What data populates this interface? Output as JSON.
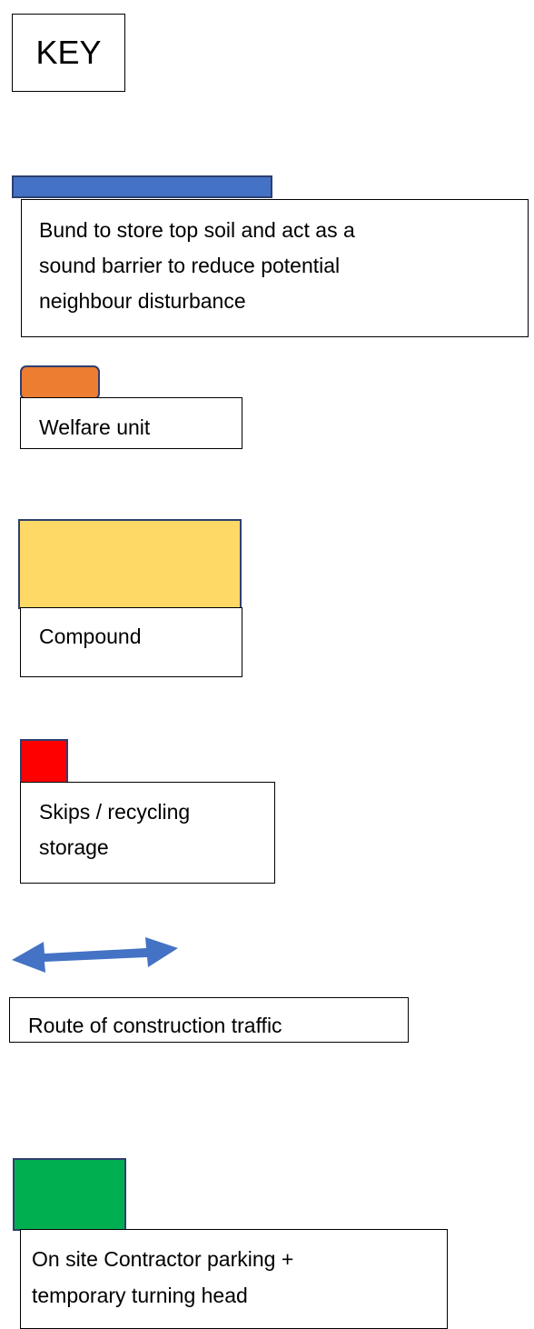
{
  "title": "KEY",
  "items": [
    {
      "color": "#4472c4",
      "lines": [
        "Bund to store top soil and act as a",
        "sound barrier to reduce potential",
        "neighbour disturbance"
      ]
    },
    {
      "color": "#ed7d31",
      "lines": [
        "Welfare unit"
      ]
    },
    {
      "color": "#ffd966",
      "lines": [
        "Compound"
      ]
    },
    {
      "color": "#ff0000",
      "lines": [
        "Skips / recycling",
        "storage"
      ]
    },
    {
      "color": "#4472c4",
      "lines": [
        "Route of construction traffic"
      ]
    },
    {
      "color": "#00b050",
      "lines": [
        "On site Contractor parking +",
        "temporary turning head"
      ]
    }
  ]
}
